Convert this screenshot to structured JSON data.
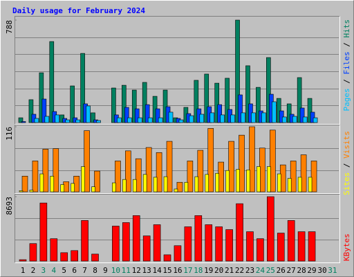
{
  "chart_data": [
    {
      "type": "bar",
      "title": "Daily usage for February 2024",
      "ylim": [
        0,
        788
      ],
      "yticks": [
        788
      ],
      "grid_divisions": 6,
      "legend_separator": " / ",
      "series": [
        {
          "name": "Hits",
          "color": "#008060",
          "values": [
            37,
            176,
            383,
            623,
            59,
            282,
            532,
            75,
            0,
            266,
            287,
            250,
            309,
            202,
            250,
            37,
            117,
            325,
            373,
            303,
            341,
            788,
            437,
            271,
            500,
            186,
            144,
            346,
            186,
            null,
            null
          ]
        },
        {
          "name": "Files",
          "color": "#0040ff",
          "values": [
            8,
            64,
            181,
            85,
            32,
            37,
            144,
            21,
            0,
            59,
            117,
            106,
            138,
            106,
            122,
            32,
            69,
            106,
            122,
            138,
            101,
            213,
            144,
            90,
            218,
            90,
            64,
            112,
            80,
            null,
            null
          ]
        },
        {
          "name": "Pages",
          "color": "#00c0ff",
          "values": [
            0,
            32,
            48,
            59,
            21,
            21,
            128,
            16,
            0,
            37,
            37,
            37,
            37,
            37,
            80,
            21,
            53,
            64,
            75,
            59,
            59,
            75,
            75,
            75,
            160,
            43,
            48,
            43,
            37,
            null,
            null
          ]
        }
      ]
    },
    {
      "type": "bar",
      "ylim": [
        0,
        116
      ],
      "yticks": [
        116
      ],
      "grid_divisions": 3,
      "legend_separator": " / ",
      "series": [
        {
          "name": "Visits",
          "color": "#ff8000",
          "values": [
            28,
            55,
            76,
            77,
            18,
            28,
            109,
            37,
            0,
            55,
            73,
            59,
            79,
            70,
            90,
            17,
            55,
            74,
            113,
            53,
            90,
            101,
            116,
            78,
            110,
            48,
            55,
            66,
            55,
            null,
            null
          ]
        },
        {
          "name": "Sites",
          "color": "#ffff00",
          "values": [
            2,
            3,
            32,
            28,
            13,
            15,
            45,
            9,
            0,
            16,
            22,
            22,
            31,
            26,
            27,
            5,
            17,
            27,
            31,
            33,
            38,
            40,
            39,
            45,
            45,
            32,
            24,
            26,
            26,
            null,
            null
          ]
        }
      ]
    },
    {
      "type": "bar",
      "ylim": [
        0,
        8693
      ],
      "yticks": [
        8693
      ],
      "grid_divisions": 3,
      "legend_separator": " / ",
      "categories": [
        "1",
        "2",
        "3",
        "4",
        "5",
        "6",
        "7",
        "8",
        "9",
        "10",
        "11",
        "12",
        "13",
        "14",
        "15",
        "16",
        "17",
        "18",
        "19",
        "20",
        "21",
        "22",
        "23",
        "24",
        "25",
        "26",
        "27",
        "28",
        "29",
        "30",
        "31"
      ],
      "category_colors": [
        "#000000",
        "#000000",
        "#008060",
        "#008060",
        "#000000",
        "#000000",
        "#000000",
        "#000000",
        "#000000",
        "#008060",
        "#008060",
        "#000000",
        "#000000",
        "#000000",
        "#000000",
        "#000000",
        "#008060",
        "#008060",
        "#000000",
        "#000000",
        "#000000",
        "#000000",
        "#000000",
        "#008060",
        "#008060",
        "#000000",
        "#000000",
        "#000000",
        "#000000",
        "#000000",
        "#008060"
      ],
      "series": [
        {
          "name": "KBytes",
          "color": "#ff0000",
          "values": [
            189,
            2362,
            7842,
            3024,
            1134,
            1417,
            5480,
            945,
            0,
            4724,
            5197,
            6142,
            3401,
            4913,
            850,
            2079,
            4630,
            6142,
            4913,
            4630,
            4252,
            7748,
            3968,
            3024,
            8693,
            3779,
            5480,
            3968,
            3968,
            null,
            null
          ]
        }
      ]
    }
  ]
}
